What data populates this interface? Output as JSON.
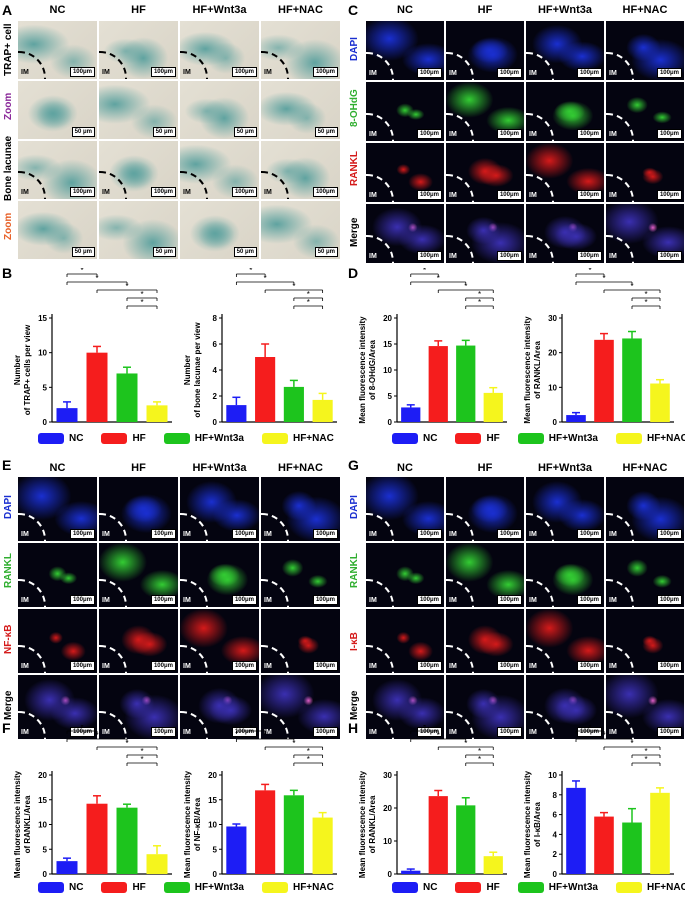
{
  "columns": [
    "NC",
    "HF",
    "HF+Wnt3a",
    "HF+NAC"
  ],
  "im_label": "IM",
  "panels": {
    "A": {
      "letter": "A",
      "rows": [
        "TRAP+ cell",
        "Zoom",
        "Bone lacunae",
        "Zoom"
      ],
      "scales": [
        "100μm",
        "50 μm",
        "100μm",
        "50 μm"
      ]
    },
    "C": {
      "letter": "C",
      "rows": [
        "DAPI",
        "8-OHdG",
        "RANKL",
        "Merge"
      ],
      "scale": "100μm"
    },
    "E": {
      "letter": "E",
      "rows": [
        "DAPI",
        "RANKL",
        "NF-κB",
        "Merge"
      ],
      "scale": "100μm"
    },
    "G": {
      "letter": "G",
      "rows": [
        "DAPI",
        "RANKL",
        "I-κB",
        "Merge"
      ],
      "scale": "100μm"
    }
  },
  "letters": {
    "B": "B",
    "D": "D",
    "F": "F",
    "H": "H"
  },
  "legend": [
    {
      "label": "NC",
      "color": "#1d1df5"
    },
    {
      "label": "HF",
      "color": "#f51d1d"
    },
    {
      "label": "HF+Wnt3a",
      "color": "#1dc41d"
    },
    {
      "label": "HF+NAC",
      "color": "#f5f51d"
    }
  ],
  "sig_marker": "*",
  "chart_data": [
    {
      "id": "B1",
      "type": "bar",
      "categories": [
        "NC",
        "HF",
        "HF+Wnt3a",
        "HF+NAC"
      ],
      "values": [
        2,
        10,
        7,
        2.4
      ],
      "errors": [
        0.9,
        0.9,
        0.9,
        0.5
      ],
      "ylabel": "Number of TRAP+ cells per view",
      "ylim": [
        0,
        15
      ],
      "ticks": [
        0,
        5,
        10,
        15
      ]
    },
    {
      "id": "B2",
      "type": "bar",
      "categories": [
        "NC",
        "HF",
        "HF+Wnt3a",
        "HF+NAC"
      ],
      "values": [
        1.3,
        5,
        2.7,
        1.7
      ],
      "errors": [
        0.6,
        1.0,
        0.5,
        0.5
      ],
      "ylabel": "Number of bone lacunae per view",
      "ylim": [
        0,
        8
      ],
      "ticks": [
        0,
        2,
        4,
        6,
        8
      ]
    },
    {
      "id": "D1",
      "type": "bar",
      "categories": [
        "NC",
        "HF",
        "HF+Wnt3a",
        "HF+NAC"
      ],
      "values": [
        2.8,
        14.6,
        14.7,
        5.6
      ],
      "errors": [
        0.5,
        1.0,
        1.0,
        1.0
      ],
      "ylabel": "Mean fluorescence intensity of 8-OHdG/Area",
      "ylim": [
        0,
        20
      ],
      "ticks": [
        0,
        5,
        10,
        15,
        20
      ]
    },
    {
      "id": "D2",
      "type": "bar",
      "categories": [
        "NC",
        "HF",
        "HF+Wnt3a",
        "HF+NAC"
      ],
      "values": [
        2,
        23.7,
        24.1,
        11.1
      ],
      "errors": [
        0.7,
        1.8,
        2.0,
        1.1
      ],
      "ylabel": "Mean fluorescence intensity of RANKL/Area",
      "ylim": [
        0,
        30
      ],
      "ticks": [
        0,
        10,
        20,
        30
      ]
    },
    {
      "id": "F1",
      "type": "bar",
      "categories": [
        "NC",
        "HF",
        "HF+Wnt3a",
        "HF+NAC"
      ],
      "values": [
        2.6,
        14.2,
        13.4,
        4
      ],
      "errors": [
        0.6,
        1.6,
        0.7,
        1.7
      ],
      "ylabel": "Mean fluorescence intensity of RANKL/Area",
      "ylim": [
        0,
        20
      ],
      "ticks": [
        0,
        5,
        10,
        15,
        20
      ]
    },
    {
      "id": "F2",
      "type": "bar",
      "categories": [
        "NC",
        "HF",
        "HF+Wnt3a",
        "HF+NAC"
      ],
      "values": [
        9.6,
        16.9,
        15.9,
        11.4
      ],
      "errors": [
        0.5,
        1.2,
        1.0,
        1.0
      ],
      "ylabel": "Mean fluorescence intensity of NF-κB/Area",
      "ylim": [
        0,
        20
      ],
      "ticks": [
        0,
        5,
        10,
        15,
        20
      ]
    },
    {
      "id": "H1",
      "type": "bar",
      "categories": [
        "NC",
        "HF",
        "HF+Wnt3a",
        "HF+NAC"
      ],
      "values": [
        1,
        23.6,
        20.8,
        5.4
      ],
      "errors": [
        0.5,
        1.7,
        2.3,
        1.2
      ],
      "ylabel": "Mean fluorescence intensity of RANKL/Area",
      "ylim": [
        0,
        30
      ],
      "ticks": [
        0,
        10,
        20,
        30
      ]
    },
    {
      "id": "H2",
      "type": "bar",
      "categories": [
        "NC",
        "HF",
        "HF+Wnt3a",
        "HF+NAC"
      ],
      "values": [
        8.7,
        5.8,
        5.2,
        8.2
      ],
      "errors": [
        0.7,
        0.4,
        1.4,
        0.5
      ],
      "ylabel": "Mean fluorescence intensity of I-κB/Area",
      "ylim": [
        0,
        10
      ],
      "ticks": [
        0,
        2,
        4,
        6,
        8,
        10
      ]
    }
  ],
  "colors": {
    "trap_bg": "#d9d4c7",
    "trap_stain": "#5fa3a0",
    "dapi": "#1a2fd0",
    "green": "#33cc33",
    "red": "#d41a1a",
    "merge": "#3a2fb0"
  }
}
